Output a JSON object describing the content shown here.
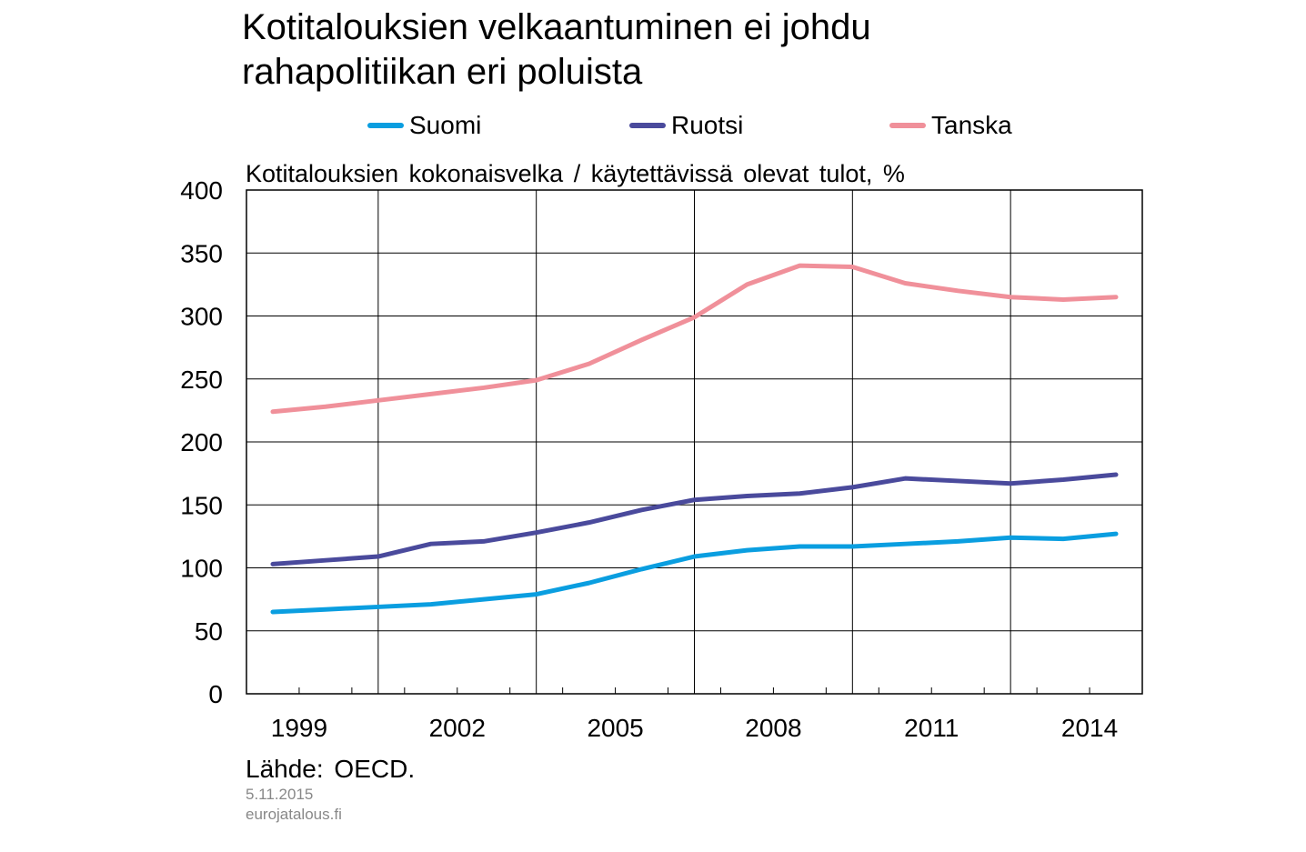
{
  "title_lines": [
    "Kotitalouksien velkaantuminen ei johdu",
    "rahapolitiikan eri poluista"
  ],
  "ylabel": "Kotitalouksien kokonaisvelka / käytettävissä olevat tulot, %",
  "source": "Lähde: OECD.",
  "date": "5.11.2015",
  "site": "eurojatalous.fi",
  "chart_data": {
    "type": "line",
    "title": "Kotitalouksien velkaantuminen ei johdu rahapolitiikan eri poluista",
    "ylabel": "Kotitalouksien kokonaisvelka / käytettävissä olevat tulot, %",
    "xlabel": "",
    "x": [
      1998,
      1999,
      2000,
      2001,
      2002,
      2003,
      2004,
      2005,
      2006,
      2007,
      2008,
      2009,
      2010,
      2011,
      2012,
      2013,
      2014
    ],
    "xlim": [
      1998,
      2015
    ],
    "ylim": [
      0,
      400
    ],
    "yticks": [
      0,
      50,
      100,
      150,
      200,
      250,
      300,
      350,
      400
    ],
    "xtick_labels": [
      "1999",
      "2002",
      "2005",
      "2008",
      "2011",
      "2014"
    ],
    "xtick_values": [
      1999,
      2002,
      2005,
      2008,
      2011,
      2014
    ],
    "grid": true,
    "legend_position": "top",
    "series": [
      {
        "name": "Suomi",
        "color": "#0a9ee0",
        "values": [
          65,
          67,
          69,
          71,
          75,
          79,
          88,
          99,
          109,
          114,
          117,
          117,
          119,
          121,
          124,
          123,
          127
        ]
      },
      {
        "name": "Ruotsi",
        "color": "#4a4a9c",
        "values": [
          103,
          106,
          109,
          119,
          121,
          128,
          136,
          146,
          154,
          157,
          159,
          164,
          171,
          169,
          167,
          170,
          174
        ]
      },
      {
        "name": "Tanska",
        "color": "#f0909a",
        "values": [
          224,
          228,
          233,
          238,
          243,
          249,
          262,
          281,
          299,
          325,
          340,
          339,
          326,
          320,
          315,
          313,
          315
        ]
      }
    ]
  }
}
